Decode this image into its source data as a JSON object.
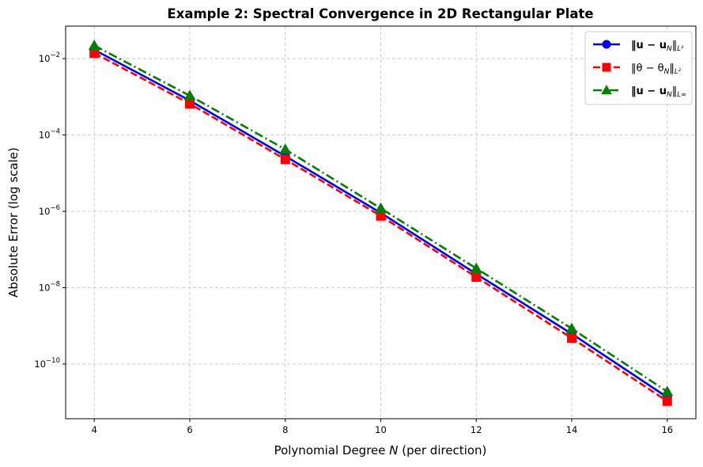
{
  "chart_data": {
    "type": "line",
    "title": "Example 2: Spectral Convergence in 2D Rectangular Plate",
    "xlabel": "Polynomial Degree N (per direction)",
    "ylabel": "Absolute Error (log scale)",
    "yscale": "log",
    "xlim": [
      3.4,
      16.6
    ],
    "ylim": [
      3.7e-12,
      0.071
    ],
    "grid": true,
    "legend_position": "top-right",
    "x": [
      4,
      6,
      8,
      10,
      12,
      14,
      16
    ],
    "xticks": [
      "4",
      "6",
      "8",
      "10",
      "12",
      "14",
      "16"
    ],
    "yticks": [
      {
        "base": "10",
        "exp": "−2",
        "value": 0.01
      },
      {
        "base": "10",
        "exp": "−4",
        "value": 0.0001
      },
      {
        "base": "10",
        "exp": "−6",
        "value": 1e-06
      },
      {
        "base": "10",
        "exp": "−8",
        "value": 1e-08
      },
      {
        "base": "10",
        "exp": "−10",
        "value": 1e-10
      }
    ],
    "series": [
      {
        "name": "‖u − u_N‖_{L²}",
        "legend_main": "‖u − u",
        "legend_sub": "N",
        "legend_tail": "‖",
        "legend_norm": "L²",
        "color": "#0000ff",
        "linestyle": "solid",
        "marker": "circle",
        "values": [
          0.017,
          0.0008,
          2.8e-05,
          9.1e-07,
          2.3e-08,
          6.2e-10,
          1.35e-11
        ]
      },
      {
        "name": "‖θ − θ_N‖_{L²}",
        "legend_main": "‖θ − θ",
        "legend_sub": "N",
        "legend_tail": "‖",
        "legend_norm": "L²",
        "color": "#ff0000",
        "linestyle": "dashed",
        "marker": "square",
        "values": [
          0.014,
          0.00066,
          2.3e-05,
          7.6e-07,
          1.9e-08,
          4.8e-10,
          1.07e-11
        ]
      },
      {
        "name": "‖u − u_N‖_{L∞}",
        "legend_main": "‖u − u",
        "legend_sub": "N",
        "legend_tail": "‖",
        "legend_norm": "L∞",
        "color": "#008000",
        "linestyle": "dashdot",
        "marker": "triangle",
        "values": [
          0.022,
          0.00107,
          4.2e-05,
          1.2e-06,
          3.2e-08,
          8.5e-10,
          1.9e-11
        ]
      }
    ]
  }
}
